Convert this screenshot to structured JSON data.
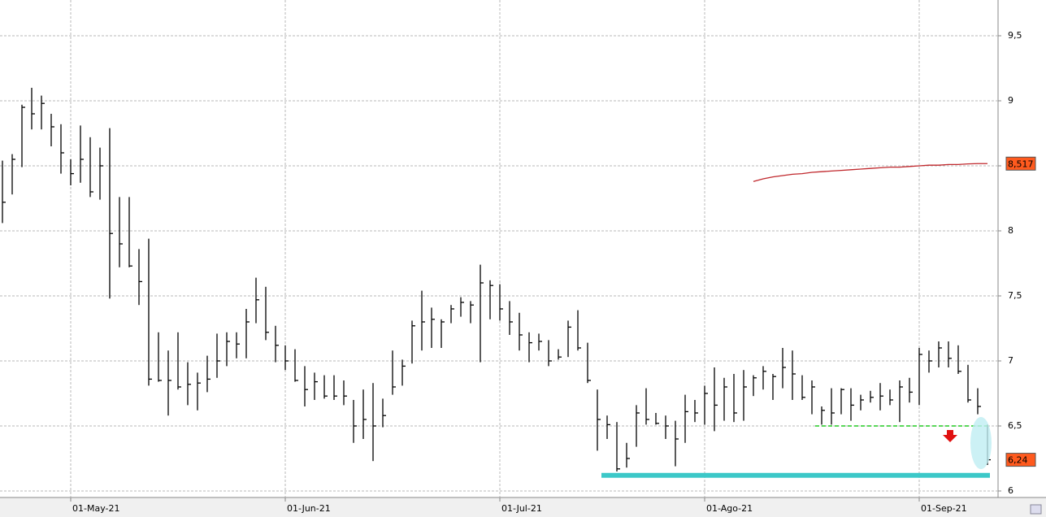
{
  "chart_data": {
    "type": "hlc",
    "categories": [
      null,
      null,
      null,
      null,
      null,
      null,
      null,
      "01-May-21",
      null,
      null,
      null,
      null,
      null,
      null,
      null,
      null,
      null,
      null,
      null,
      null,
      null,
      null,
      null,
      null,
      null,
      null,
      null,
      null,
      null,
      "01-Jun-21",
      null,
      null,
      null,
      null,
      null,
      null,
      null,
      null,
      null,
      null,
      null,
      null,
      null,
      null,
      null,
      null,
      null,
      null,
      null,
      null,
      null,
      "01-Jul-21",
      null,
      null,
      null,
      null,
      null,
      null,
      null,
      null,
      null,
      null,
      null,
      null,
      null,
      null,
      null,
      null,
      null,
      null,
      null,
      null,
      "01-Ago-21",
      null,
      null,
      null,
      null,
      null,
      null,
      null,
      null,
      null,
      null,
      null,
      null,
      null,
      null,
      null,
      null,
      null,
      null,
      null,
      null,
      null,
      "01-Sep-21",
      null,
      null,
      null,
      null,
      null,
      null,
      null
    ],
    "high": [
      8.54,
      8.59,
      8.97,
      9.1,
      9.04,
      8.9,
      8.82,
      8.55,
      8.81,
      8.72,
      8.64,
      8.79,
      8.26,
      8.26,
      7.86,
      7.94,
      7.22,
      7.08,
      7.22,
      6.99,
      6.91,
      7.04,
      7.21,
      7.22,
      7.22,
      7.4,
      7.64,
      7.57,
      7.27,
      7.12,
      7.09,
      6.96,
      6.91,
      6.89,
      6.89,
      6.85,
      6.7,
      6.78,
      6.83,
      6.71,
      7.08,
      7.01,
      7.31,
      7.54,
      7.41,
      7.32,
      7.43,
      7.49,
      7.46,
      7.74,
      7.62,
      7.59,
      7.46,
      7.37,
      7.22,
      7.21,
      7.16,
      7.09,
      7.31,
      7.39,
      7.14,
      6.78,
      6.58,
      6.53,
      6.37,
      6.66,
      6.79,
      6.6,
      6.58,
      6.54,
      6.74,
      6.7,
      6.81,
      6.95,
      6.87,
      6.9,
      6.93,
      6.89,
      6.96,
      6.9,
      7.1,
      7.08,
      6.89,
      6.85,
      6.65,
      6.79,
      6.79,
      6.79,
      6.74,
      6.77,
      6.83,
      6.78,
      6.85,
      6.87,
      7.1,
      7.08,
      7.15,
      7.15,
      7.12,
      6.97,
      6.79,
      6.51
    ],
    "low": [
      8.06,
      8.28,
      8.49,
      8.78,
      8.78,
      8.65,
      8.44,
      8.35,
      8.37,
      8.26,
      8.24,
      7.48,
      7.72,
      7.72,
      7.43,
      6.81,
      6.84,
      6.58,
      6.78,
      6.66,
      6.62,
      6.76,
      6.87,
      6.96,
      7.02,
      7.02,
      7.29,
      7.16,
      6.99,
      6.93,
      6.84,
      6.65,
      6.7,
      6.71,
      6.7,
      6.66,
      6.37,
      6.4,
      6.23,
      6.49,
      6.74,
      6.81,
      6.98,
      7.08,
      7.1,
      7.1,
      7.29,
      7.34,
      7.29,
      6.99,
      7.32,
      7.31,
      7.2,
      7.08,
      6.99,
      7.08,
      6.96,
      7.01,
      7.03,
      7.08,
      6.83,
      6.31,
      6.4,
      6.15,
      6.18,
      6.34,
      6.51,
      6.51,
      6.4,
      6.19,
      6.37,
      6.53,
      6.51,
      6.46,
      6.54,
      6.53,
      6.54,
      6.73,
      6.78,
      6.7,
      6.79,
      6.7,
      6.7,
      6.59,
      6.51,
      6.51,
      6.59,
      6.54,
      6.62,
      6.68,
      6.62,
      6.66,
      6.53,
      6.68,
      6.66,
      6.91,
      6.95,
      6.95,
      6.9,
      6.68,
      6.59,
      6.2
    ],
    "close": [
      8.22,
      8.55,
      8.95,
      8.9,
      8.98,
      8.8,
      8.6,
      8.44,
      8.55,
      8.3,
      8.5,
      7.98,
      7.9,
      7.73,
      7.61,
      6.86,
      6.85,
      6.85,
      6.8,
      6.82,
      6.83,
      6.86,
      7.0,
      7.15,
      7.13,
      7.3,
      7.47,
      7.22,
      7.12,
      7.0,
      6.85,
      6.78,
      6.84,
      6.73,
      6.73,
      6.73,
      6.5,
      6.55,
      6.5,
      6.58,
      6.8,
      6.96,
      7.27,
      7.3,
      7.32,
      7.3,
      7.4,
      7.45,
      7.43,
      7.6,
      7.58,
      7.4,
      7.3,
      7.2,
      7.14,
      7.15,
      7.0,
      7.03,
      7.26,
      7.1,
      6.85,
      6.55,
      6.51,
      6.17,
      6.25,
      6.6,
      6.55,
      6.52,
      6.5,
      6.4,
      6.61,
      6.6,
      6.75,
      6.66,
      6.8,
      6.6,
      6.8,
      6.87,
      6.92,
      6.88,
      6.95,
      6.9,
      6.72,
      6.8,
      6.62,
      6.6,
      6.78,
      6.66,
      6.7,
      6.72,
      6.73,
      6.7,
      6.8,
      6.76,
      7.05,
      7.0,
      7.1,
      7.02,
      6.92,
      6.7,
      6.65,
      6.24
    ],
    "bar_color": "#000000",
    "ma": [
      null,
      null,
      null,
      null,
      null,
      null,
      null,
      null,
      null,
      null,
      null,
      null,
      null,
      null,
      null,
      null,
      null,
      null,
      null,
      null,
      null,
      null,
      null,
      null,
      null,
      null,
      null,
      null,
      null,
      null,
      null,
      null,
      null,
      null,
      null,
      null,
      null,
      null,
      null,
      null,
      null,
      null,
      null,
      null,
      null,
      null,
      null,
      null,
      null,
      null,
      null,
      null,
      null,
      null,
      null,
      null,
      null,
      null,
      null,
      null,
      null,
      null,
      null,
      null,
      null,
      null,
      null,
      null,
      null,
      null,
      null,
      null,
      null,
      null,
      null,
      null,
      null,
      8.38,
      8.4,
      8.415,
      8.425,
      8.435,
      8.44,
      8.45,
      8.455,
      8.46,
      8.465,
      8.47,
      8.475,
      8.48,
      8.485,
      8.49,
      8.49,
      8.495,
      8.5,
      8.505,
      8.505,
      8.51,
      8.51,
      8.515,
      8.517,
      8.517
    ],
    "ma_color": "#c0282d",
    "ma_label": {
      "value": 8.517,
      "label": "8,517"
    },
    "last_label": {
      "value": 6.24,
      "label": "6,24"
    },
    "label_color": "#ff5a1e",
    "support_line": {
      "value": 6.12,
      "color": "#3cc8c8"
    },
    "broken_level": {
      "value": 6.5,
      "color": "#22cc22"
    },
    "ylim": [
      5.95,
      9.775
    ],
    "yticks": [
      6,
      {
        "value": 6.5,
        "label": "6,5"
      },
      7,
      {
        "value": 7.5,
        "label": "7,5"
      },
      8,
      {
        "value": 8.5,
        "label": "8,5"
      },
      9,
      {
        "value": 9.5,
        "label": "9,5"
      }
    ],
    "grid": true
  }
}
